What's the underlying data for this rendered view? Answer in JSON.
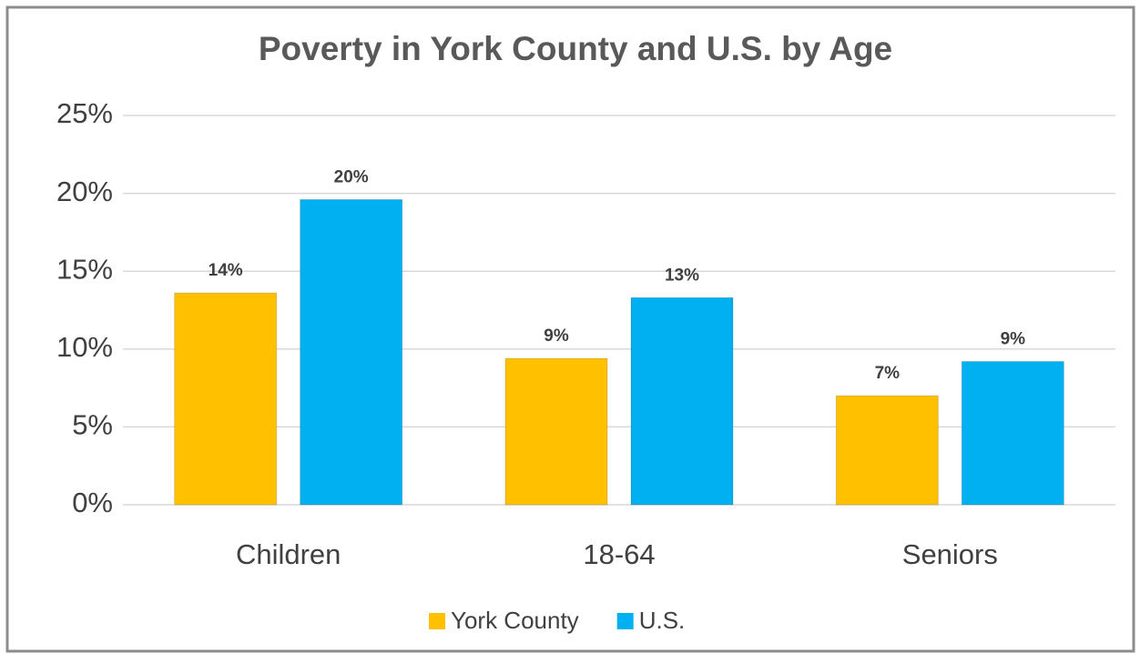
{
  "chart_data": {
    "type": "bar",
    "title": "Poverty in York County and U.S. by Age",
    "categories": [
      "Children",
      "18-64",
      "Seniors"
    ],
    "series": [
      {
        "name": "York County",
        "color": "#ffc000",
        "values": [
          13.6,
          9.4,
          7.0
        ],
        "value_labels": [
          "14%",
          "9%",
          "7%"
        ]
      },
      {
        "name": "U.S.",
        "color": "#00b0f0",
        "values": [
          19.6,
          13.3,
          9.2
        ],
        "value_labels": [
          "20%",
          "13%",
          "9%"
        ]
      }
    ],
    "ylim": [
      0,
      25
    ],
    "yticks": [
      {
        "value": 0,
        "label": "0%"
      },
      {
        "value": 5,
        "label": "5%"
      },
      {
        "value": 10,
        "label": "10%"
      },
      {
        "value": 15,
        "label": "15%"
      },
      {
        "value": 20,
        "label": "20%"
      },
      {
        "value": 25,
        "label": "25%"
      }
    ],
    "grid": true,
    "legend": "bottom"
  }
}
